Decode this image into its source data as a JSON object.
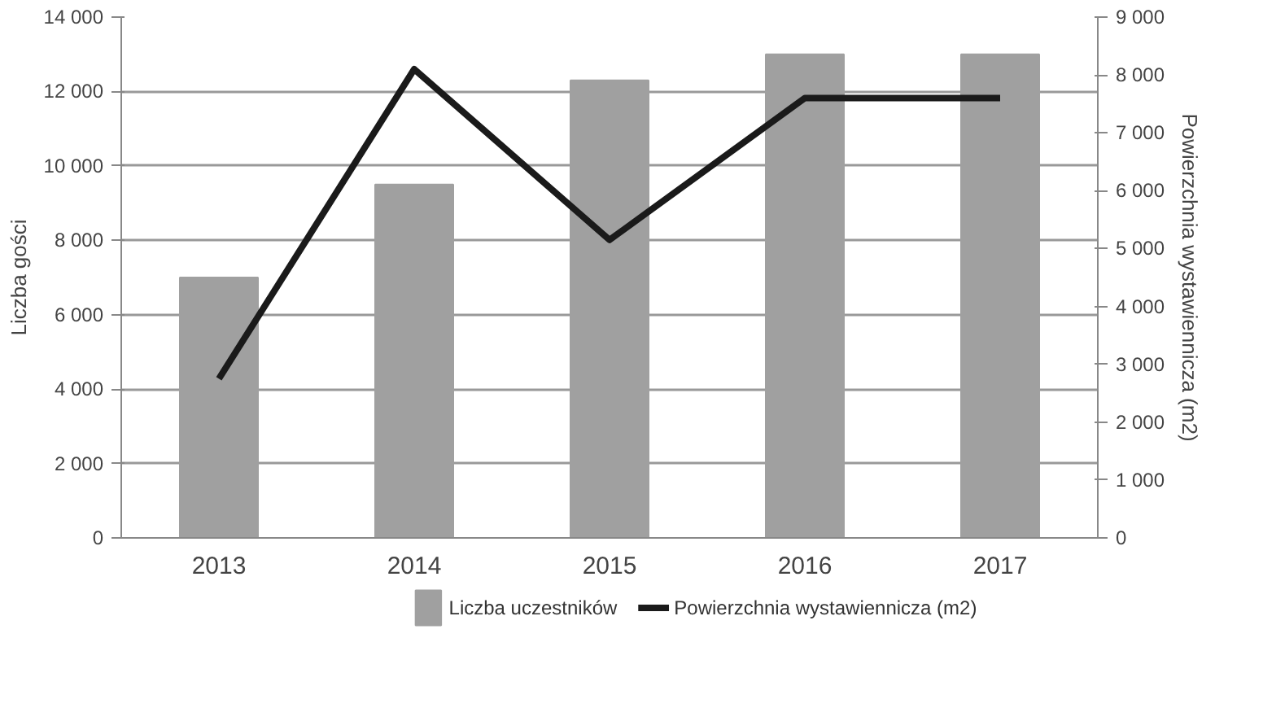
{
  "chart_data": {
    "type": "bar",
    "categories": [
      "2013",
      "2014",
      "2015",
      "2016",
      "2017"
    ],
    "ylabel": "Liczba gości",
    "y2label": "Powierzchnia wystawiennicza (m2)",
    "series": [
      {
        "name": "Liczba uczestników",
        "color": "#a0a0a0",
        "values": [
          7000,
          9500,
          12300,
          13000,
          13000
        ]
      },
      {
        "name": "Powierzchnia wystawiennicza (m2)",
        "type": "line",
        "axis": "y2",
        "color": "#1a1a1a",
        "values": [
          2750,
          8100,
          5150,
          7600,
          7600
        ]
      }
    ],
    "ylim": [
      0,
      14000
    ],
    "yticks": [
      0,
      {
        "value": 2000,
        "label": "2 000"
      },
      {
        "value": 4000,
        "label": "4 000"
      },
      {
        "value": 6000,
        "label": "6 000"
      },
      {
        "value": 8000,
        "label": "8 000"
      },
      {
        "value": 10000,
        "label": "10 000"
      },
      {
        "value": 12000,
        "label": "12 000"
      },
      {
        "value": 14000,
        "label": "14 000"
      }
    ],
    "y2lim": [
      0,
      9000
    ],
    "y2ticks": [
      0,
      {
        "value": 1000,
        "label": "1 000"
      },
      {
        "value": 2000,
        "label": "2 000"
      },
      {
        "value": 3000,
        "label": "3 000"
      },
      {
        "value": 4000,
        "label": "4 000"
      },
      {
        "value": 5000,
        "label": "5 000"
      },
      {
        "value": 6000,
        "label": "6 000"
      },
      {
        "value": 7000,
        "label": "7 000"
      },
      {
        "value": 8000,
        "label": "8 000"
      },
      {
        "value": 9000,
        "label": "9 000"
      }
    ],
    "grid": "y",
    "legend": "bottom"
  }
}
